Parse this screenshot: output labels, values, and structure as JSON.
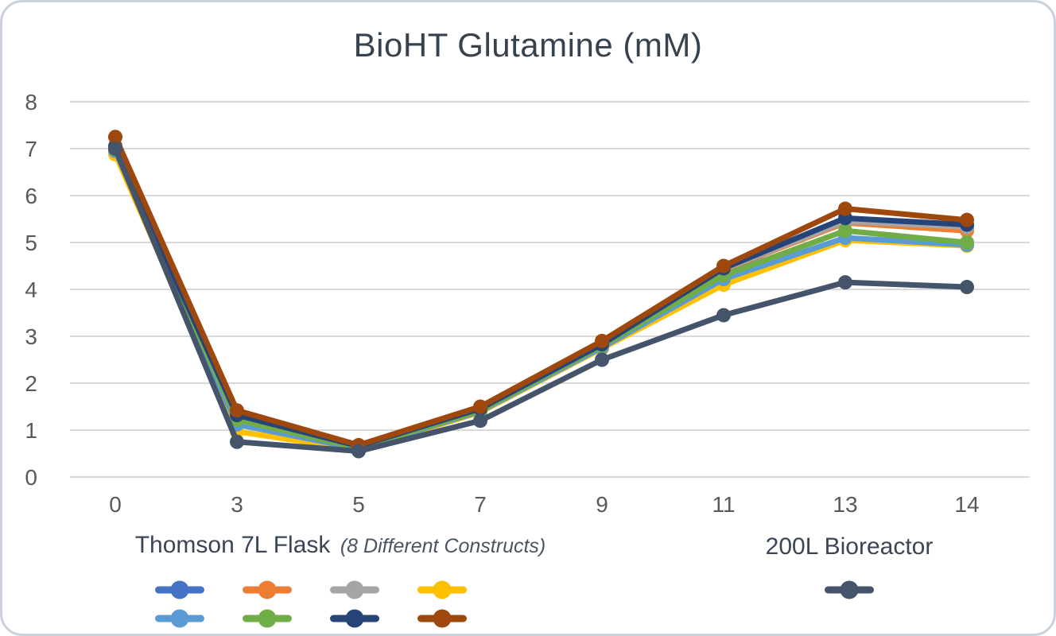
{
  "frame": {
    "background": "#FFFFFF",
    "border_color": "#C9D1DC"
  },
  "chart_data": {
    "type": "line",
    "title": "BioHT Glutamine (mM)",
    "title_color": "#37424F",
    "xlabel": "",
    "ylabel": "",
    "categories": [
      "0",
      "3",
      "5",
      "7",
      "9",
      "11",
      "13",
      "14"
    ],
    "ylim": [
      0,
      8
    ],
    "yticks": [
      0,
      1,
      2,
      3,
      4,
      5,
      6,
      7,
      8
    ],
    "grid": true,
    "gridline_color": "#D9D9D9",
    "axis_label_color": "#595959",
    "legend_position": "bottom",
    "series": [
      {
        "id": "flask-1",
        "group": "Thomson 7L Flask",
        "color": "#4472C4",
        "values": [
          7.0,
          1.3,
          0.64,
          1.44,
          2.8,
          4.4,
          5.45,
          5.3
        ]
      },
      {
        "id": "flask-2",
        "group": "Thomson 7L Flask",
        "color": "#ED7D31",
        "values": [
          7.05,
          1.33,
          0.65,
          1.45,
          2.81,
          4.42,
          5.42,
          5.25
        ]
      },
      {
        "id": "flask-3",
        "group": "Thomson 7L Flask",
        "color": "#A5A5A5",
        "values": [
          7.0,
          1.28,
          0.63,
          1.43,
          2.79,
          4.43,
          5.45,
          5.33
        ]
      },
      {
        "id": "flask-4",
        "group": "Thomson 7L Flask",
        "color": "#FFC000",
        "values": [
          6.88,
          0.97,
          0.58,
          1.38,
          2.74,
          4.1,
          5.05,
          4.93
        ]
      },
      {
        "id": "flask-5",
        "group": "Thomson 7L Flask",
        "color": "#5B9BD5",
        "values": [
          6.95,
          1.12,
          0.6,
          1.4,
          2.76,
          4.22,
          5.1,
          4.95
        ]
      },
      {
        "id": "flask-6",
        "group": "Thomson 7L Flask",
        "color": "#70AD47",
        "values": [
          6.98,
          1.22,
          0.62,
          1.42,
          2.8,
          4.3,
          5.25,
          5.0
        ]
      },
      {
        "id": "flask-7",
        "group": "Thomson 7L Flask",
        "color": "#264478",
        "values": [
          7.05,
          1.32,
          0.66,
          1.46,
          2.83,
          4.45,
          5.52,
          5.38
        ]
      },
      {
        "id": "flask-8",
        "group": "Thomson 7L Flask",
        "color": "#9E480E",
        "values": [
          7.25,
          1.42,
          0.68,
          1.5,
          2.9,
          4.5,
          5.72,
          5.48
        ]
      },
      {
        "id": "bioreactor-200l",
        "group": "200L Bioreactor",
        "color": "#44546A",
        "values": [
          7.0,
          0.75,
          0.55,
          1.2,
          2.5,
          3.45,
          4.15,
          4.05
        ]
      }
    ],
    "legend": {
      "groups": [
        {
          "label": "Thomson 7L Flask",
          "sublabel": "(8 Different Constructs)",
          "series_ids": [
            "flask-1",
            "flask-2",
            "flask-3",
            "flask-4",
            "flask-5",
            "flask-6",
            "flask-7",
            "flask-8"
          ]
        },
        {
          "label": "200L Bioreactor",
          "sublabel": "",
          "series_ids": [
            "bioreactor-200l"
          ]
        }
      ]
    }
  }
}
